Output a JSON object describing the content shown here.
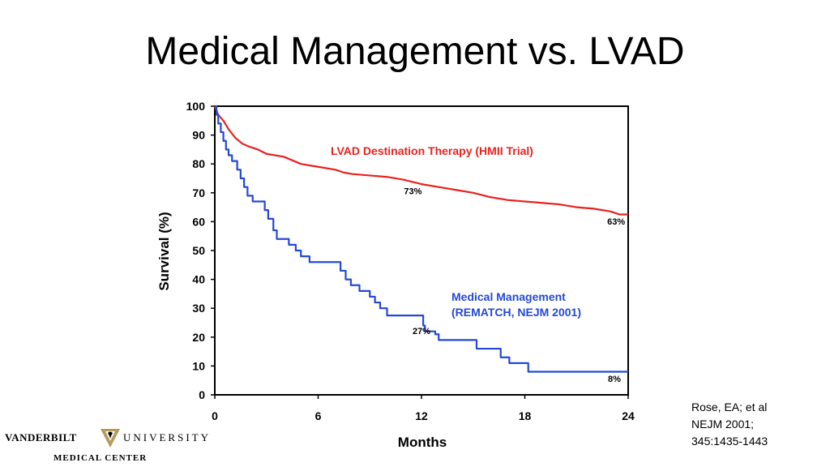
{
  "title": "Medical Management vs. LVAD",
  "citation": [
    "Rose, EA; et al",
    "NEJM 2001;",
    "345:1435-1443"
  ],
  "logo": {
    "left_text": "VANDERBILT",
    "right_text": "UNIVERSITY",
    "sub_text": "MEDICAL CENTER",
    "mark_icon": "vanderbilt-v-oak-leaf-icon",
    "gold": "#B39B5A"
  },
  "chart_data": {
    "type": "line",
    "xlabel": "Months",
    "ylabel": "Survival (%)",
    "xlim": [
      0,
      24
    ],
    "ylim": [
      0,
      100
    ],
    "xticks": [
      0,
      6,
      12,
      18,
      24
    ],
    "yticks": [
      0,
      10,
      20,
      30,
      40,
      50,
      60,
      70,
      80,
      90,
      100
    ],
    "grid": false,
    "series": [
      {
        "name": "LVAD Destination Therapy (HMII Trial)",
        "color": "#E8221F",
        "step": false,
        "points": [
          [
            0,
            100
          ],
          [
            0.2,
            97
          ],
          [
            0.5,
            95
          ],
          [
            0.8,
            92
          ],
          [
            1.2,
            89
          ],
          [
            1.6,
            87
          ],
          [
            2,
            86
          ],
          [
            2.5,
            85
          ],
          [
            3,
            83.5
          ],
          [
            4,
            82.5
          ],
          [
            5,
            80
          ],
          [
            6,
            79
          ],
          [
            7,
            78
          ],
          [
            7.5,
            77
          ],
          [
            8,
            76.5
          ],
          [
            9,
            76
          ],
          [
            10,
            75.5
          ],
          [
            11,
            74.5
          ],
          [
            12,
            73
          ],
          [
            13,
            72
          ],
          [
            14,
            71
          ],
          [
            15,
            70
          ],
          [
            16,
            68.5
          ],
          [
            17,
            67.5
          ],
          [
            18,
            67
          ],
          [
            19,
            66.5
          ],
          [
            20,
            66
          ],
          [
            21,
            65
          ],
          [
            22,
            64.5
          ],
          [
            23,
            63.5
          ],
          [
            23.5,
            62.5
          ],
          [
            24,
            62.5
          ]
        ]
      },
      {
        "name": "Medical Management (REMATCH, NEJM 2001)",
        "color": "#2449D6",
        "step": true,
        "points": [
          [
            0,
            100
          ],
          [
            0.1,
            97
          ],
          [
            0.2,
            94
          ],
          [
            0.35,
            91
          ],
          [
            0.5,
            88
          ],
          [
            0.65,
            85
          ],
          [
            0.8,
            83
          ],
          [
            1,
            81
          ],
          [
            1.3,
            78
          ],
          [
            1.5,
            75
          ],
          [
            1.7,
            72
          ],
          [
            1.9,
            69
          ],
          [
            2.2,
            67
          ],
          [
            2.9,
            64
          ],
          [
            3.1,
            61
          ],
          [
            3.4,
            57
          ],
          [
            3.6,
            54
          ],
          [
            4.3,
            52
          ],
          [
            4.7,
            50
          ],
          [
            5,
            48
          ],
          [
            5.5,
            46
          ],
          [
            7.3,
            43
          ],
          [
            7.6,
            40
          ],
          [
            7.9,
            38
          ],
          [
            8.4,
            36
          ],
          [
            9,
            34
          ],
          [
            9.3,
            32
          ],
          [
            9.6,
            30
          ],
          [
            10,
            27.5
          ],
          [
            12.1,
            24
          ],
          [
            12.2,
            22
          ],
          [
            12.8,
            21
          ],
          [
            13,
            19
          ],
          [
            15.2,
            16
          ],
          [
            16.6,
            13
          ],
          [
            17.1,
            11
          ],
          [
            18.2,
            8
          ],
          [
            24,
            8
          ]
        ]
      }
    ],
    "annotations": [
      {
        "text": "73%",
        "x": 11.5,
        "y": 69.5
      },
      {
        "text": "63%",
        "x": 23.3,
        "y": 59
      },
      {
        "text": "27%",
        "x": 12,
        "y": 21
      },
      {
        "text": "8%",
        "x": 23.2,
        "y": 4.5
      }
    ]
  }
}
